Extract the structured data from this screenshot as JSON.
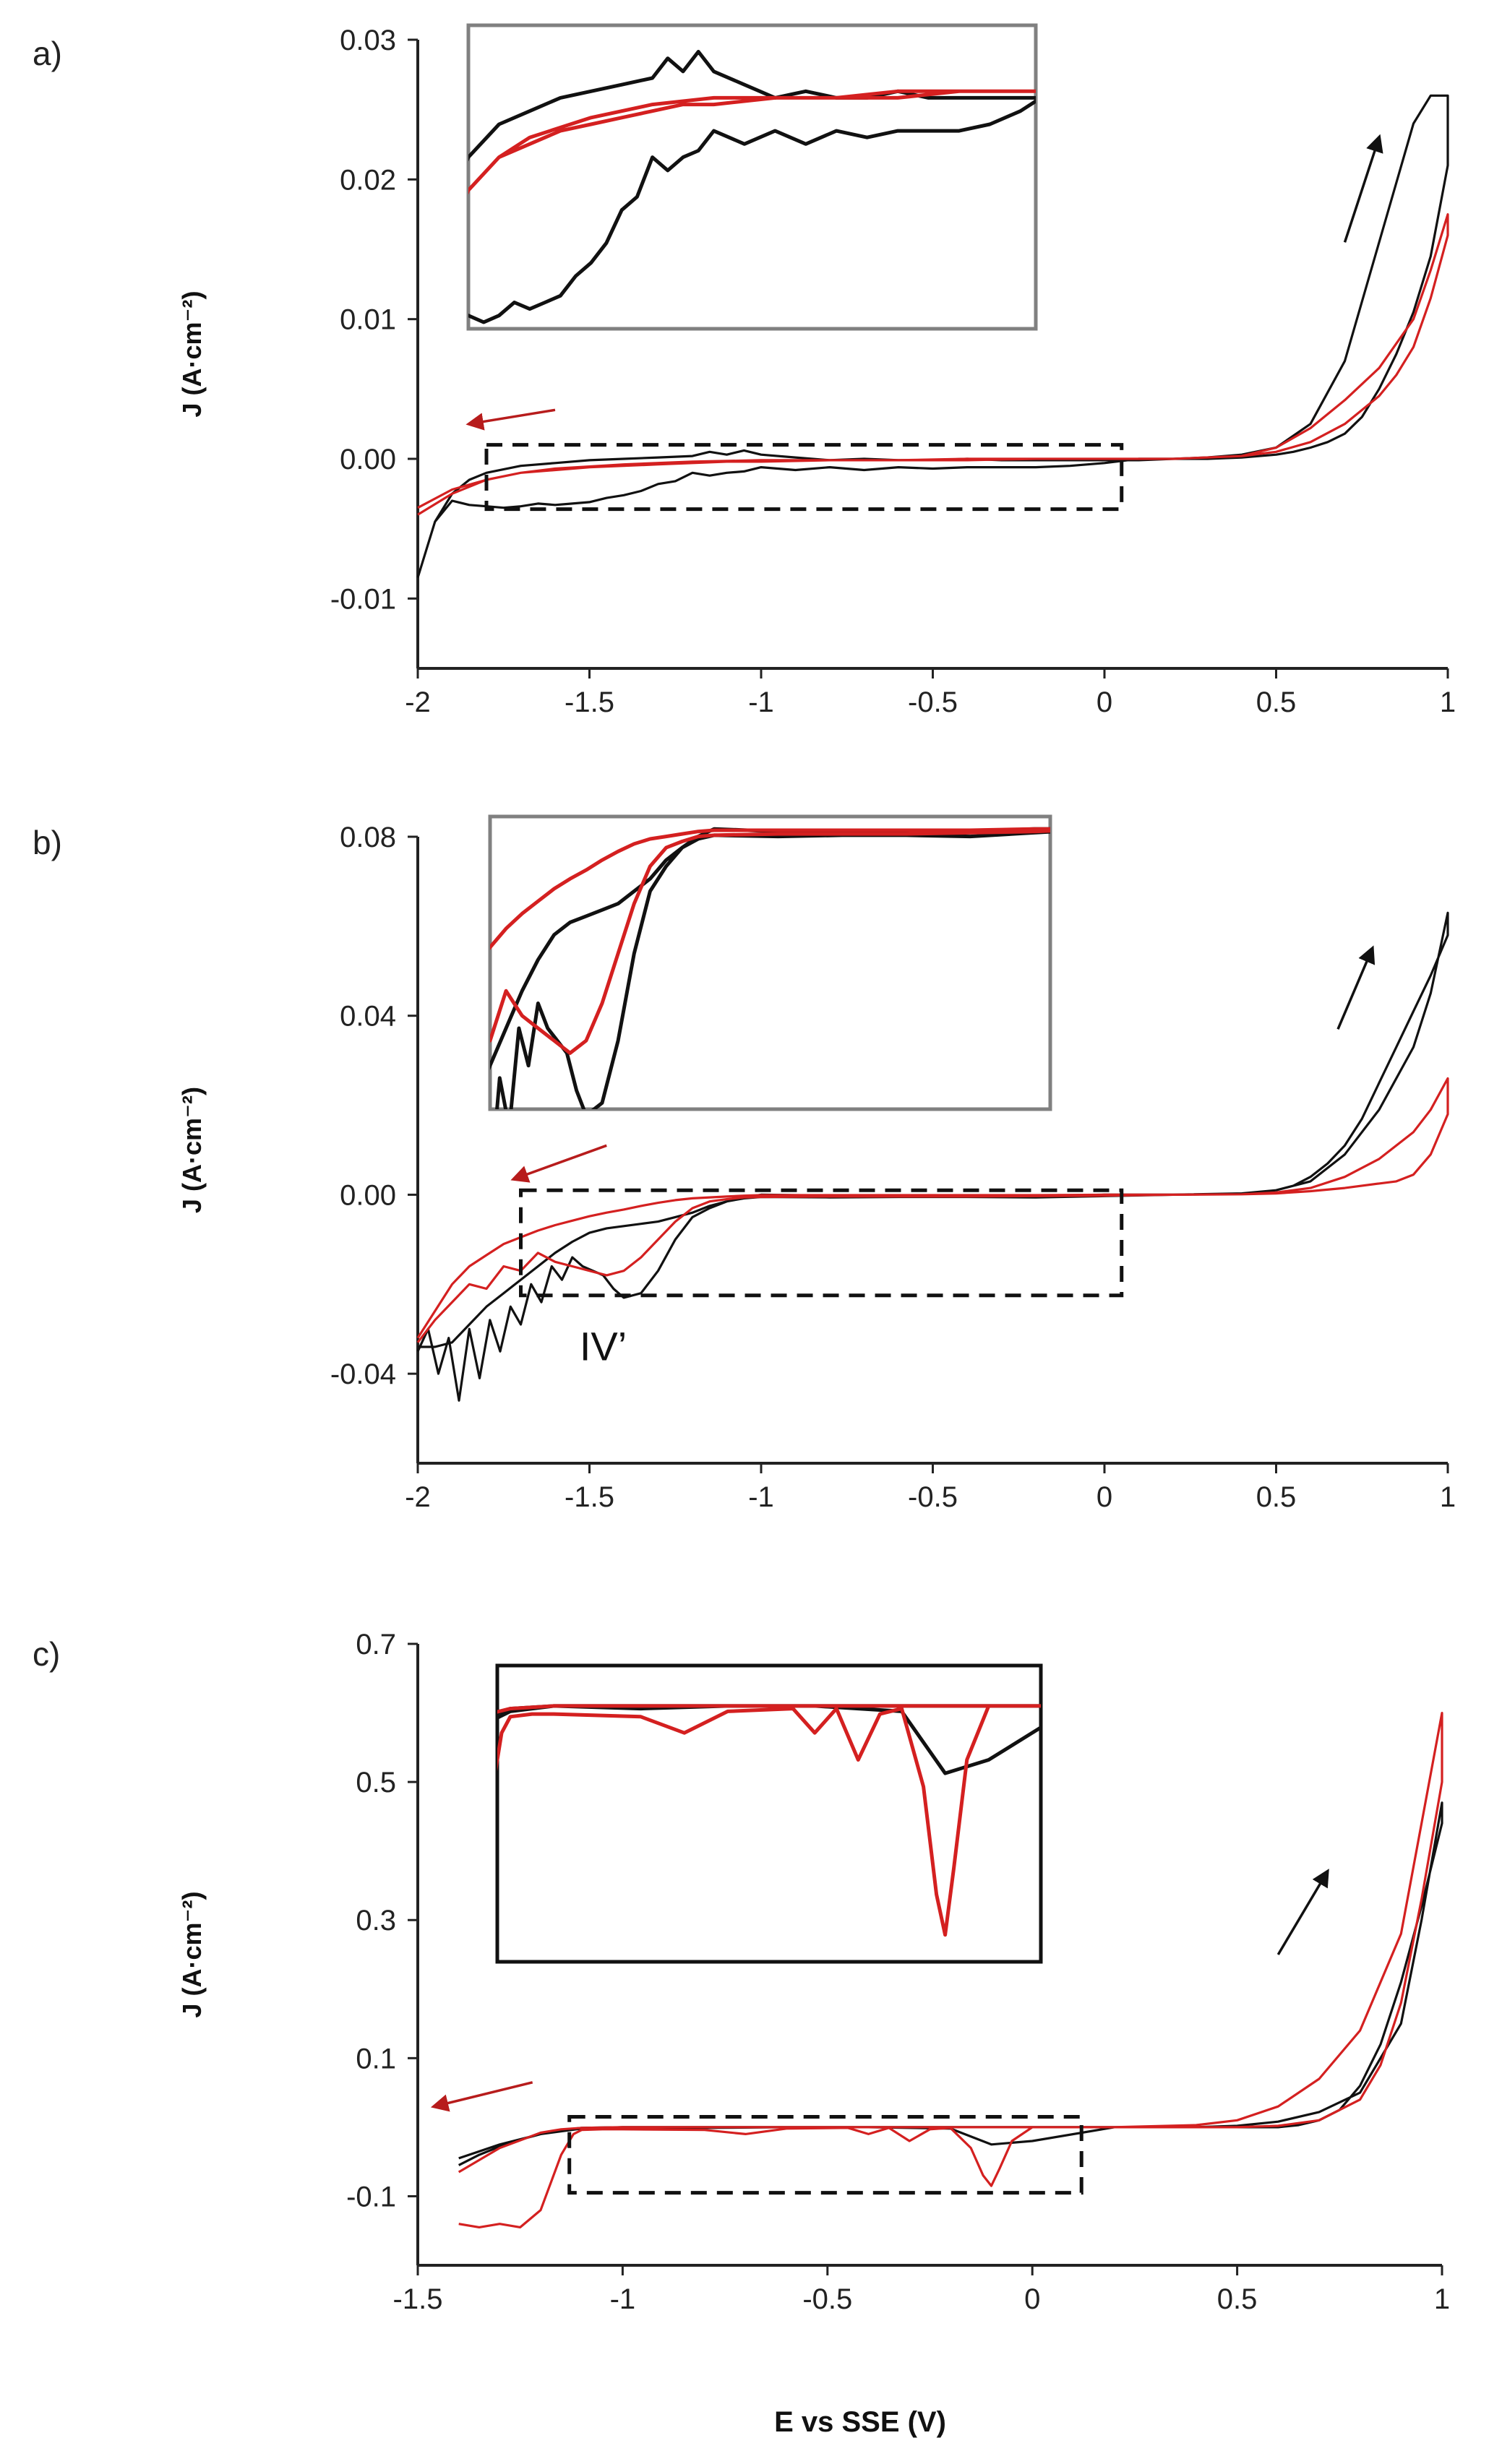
{
  "figure": {
    "xlabel": "E vs SSE (V)",
    "colors": {
      "black": "#111111",
      "red": "#d42020",
      "inset_border_gray": "#808080",
      "arrow_black": "#111111",
      "arrow_red": "#b71c1c"
    }
  },
  "chart_data": [
    {
      "panel": "a)",
      "type": "line",
      "title": "",
      "xlabel": "",
      "ylabel": "J (A·cm⁻²)",
      "xlim": [
        -2,
        1
      ],
      "ylim": [
        -0.015,
        0.03
      ],
      "xticks": [
        -2,
        -1.5,
        -1,
        -0.5,
        0,
        0.5,
        1
      ],
      "xtick_labels": [
        "-2",
        "-1.5",
        "-1",
        "-0.5",
        "0",
        "0.5",
        "1"
      ],
      "yticks": [
        -0.01,
        0.0,
        0.01,
        0.02,
        0.03
      ],
      "ytick_labels": [
        "-0.01",
        "0.00",
        "0.01",
        "0.02",
        "0.03"
      ],
      "zoom_box": {
        "x": [
          -1.8,
          0.05
        ],
        "y": [
          -0.0036,
          0.001
        ]
      },
      "inset_border": "gray",
      "arrows": [
        {
          "color": "black",
          "from": [
            0.7,
            0.0155
          ],
          "to": [
            0.8,
            0.023
          ]
        },
        {
          "color": "red",
          "from": [
            -1.6,
            0.0035
          ],
          "to": [
            -1.85,
            0.0025
          ]
        }
      ],
      "series": [
        {
          "name": "black",
          "color": "black",
          "x": [
            -2.0,
            -1.95,
            -1.9,
            -1.85,
            -1.8,
            -1.75,
            -1.7,
            -1.65,
            -1.6,
            -1.55,
            -1.5,
            -1.45,
            -1.4,
            -1.35,
            -1.3,
            -1.25,
            -1.2,
            -1.15,
            -1.1,
            -1.05,
            -1.0,
            -0.9,
            -0.8,
            -0.7,
            -0.6,
            -0.5,
            -0.4,
            -0.3,
            -0.2,
            -0.1,
            0.0,
            0.1,
            0.2,
            0.3,
            0.4,
            0.5,
            0.6,
            0.7,
            0.8,
            0.9,
            0.95,
            1.0,
            1.0,
            0.95,
            0.9,
            0.85,
            0.8,
            0.75,
            0.7,
            0.65,
            0.6,
            0.55,
            0.5,
            0.4,
            0.3,
            0.2,
            0.1,
            0.0,
            -0.1,
            -0.2,
            -0.3,
            -0.4,
            -0.5,
            -0.6,
            -0.7,
            -0.8,
            -0.9,
            -1.0,
            -1.05,
            -1.1,
            -1.15,
            -1.2,
            -1.3,
            -1.4,
            -1.5,
            -1.6,
            -1.7,
            -1.8,
            -1.85,
            -1.9,
            -1.95,
            -2.0
          ],
          "y": [
            -0.0085,
            -0.0045,
            -0.003,
            -0.0033,
            -0.0034,
            -0.0035,
            -0.0034,
            -0.0032,
            -0.0033,
            -0.0032,
            -0.0031,
            -0.0028,
            -0.0026,
            -0.0023,
            -0.0018,
            -0.0016,
            -0.001,
            -0.0012,
            -0.001,
            -0.0009,
            -0.0006,
            -0.0008,
            -0.0006,
            -0.0008,
            -0.0006,
            -0.0007,
            -0.0006,
            -0.0006,
            -0.0006,
            -0.0005,
            -0.0003,
            0.0,
            0.0,
            0.0001,
            0.0003,
            0.0008,
            0.0025,
            0.007,
            0.0155,
            0.024,
            0.026,
            0.026,
            0.021,
            0.0145,
            0.0105,
            0.0075,
            0.005,
            0.003,
            0.0018,
            0.0012,
            0.0008,
            0.0005,
            0.0003,
            0.0001,
            0.0,
            0.0,
            -0.0001,
            -0.0001,
            -0.0001,
            -0.0001,
            -0.0001,
            0.0,
            -0.0001,
            -0.0001,
            0.0,
            -0.0001,
            0.0001,
            0.0003,
            0.0006,
            0.0003,
            0.0005,
            0.0002,
            0.0001,
            0.0,
            -0.0001,
            -0.0003,
            -0.0005,
            -0.001,
            -0.0015,
            -0.0025,
            -0.0045,
            -0.0085
          ]
        },
        {
          "name": "red",
          "color": "red",
          "x": [
            -2.0,
            -1.9,
            -1.8,
            -1.7,
            -1.6,
            -1.5,
            -1.4,
            -1.3,
            -1.2,
            -1.1,
            -1.0,
            -0.8,
            -0.6,
            -0.4,
            -0.2,
            0.0,
            0.2,
            0.4,
            0.5,
            0.6,
            0.7,
            0.8,
            0.9,
            0.95,
            1.0,
            1.0,
            0.95,
            0.9,
            0.85,
            0.8,
            0.7,
            0.6,
            0.5,
            0.4,
            0.2,
            0.0,
            -0.2,
            -0.4,
            -0.6,
            -0.8,
            -1.0,
            -1.2,
            -1.4,
            -1.6,
            -1.7,
            -1.8,
            -1.9,
            -2.0
          ],
          "y": [
            -0.004,
            -0.0025,
            -0.0015,
            -0.001,
            -0.0008,
            -0.0006,
            -0.0005,
            -0.0004,
            -0.0003,
            -0.0002,
            -0.0002,
            -0.0001,
            -0.0001,
            -0.0001,
            0.0,
            0.0,
            0.0,
            0.0002,
            0.0008,
            0.0022,
            0.0042,
            0.0065,
            0.01,
            0.0135,
            0.0175,
            0.016,
            0.0115,
            0.008,
            0.006,
            0.0045,
            0.0025,
            0.0012,
            0.0005,
            0.0002,
            0.0,
            0.0,
            0.0,
            0.0,
            -0.0001,
            -0.0001,
            -0.0001,
            -0.0002,
            -0.0004,
            -0.0007,
            -0.001,
            -0.0015,
            -0.0022,
            -0.0035
          ]
        }
      ]
    },
    {
      "panel": "b)",
      "type": "line",
      "title": "",
      "xlabel": "",
      "ylabel": "J (A·cm⁻²)",
      "xlim": [
        -2,
        1
      ],
      "ylim": [
        -0.06,
        0.08
      ],
      "xticks": [
        -2,
        -1.5,
        -1,
        -0.5,
        0,
        0.5,
        1
      ],
      "xtick_labels": [
        "-2",
        "-1.5",
        "-1",
        "-0.5",
        "0",
        "0.5",
        "1"
      ],
      "yticks": [
        -0.04,
        0.0,
        0.04,
        0.08
      ],
      "ytick_labels": [
        "-0.04",
        "0.00",
        "0.04",
        "0.08"
      ],
      "zoom_box": {
        "x": [
          -1.7,
          0.05
        ],
        "y": [
          -0.0225,
          0.001
        ]
      },
      "inset_border": "gray",
      "annotation": {
        "text": "IV’",
        "x": -1.46,
        "y": -0.037
      },
      "arrows": [
        {
          "color": "black",
          "from": [
            0.68,
            0.037
          ],
          "to": [
            0.78,
            0.055
          ]
        },
        {
          "color": "red",
          "from": [
            -1.45,
            0.011
          ],
          "to": [
            -1.72,
            0.0035
          ]
        }
      ],
      "series": [
        {
          "name": "black",
          "color": "black",
          "x": [
            -2.0,
            -1.97,
            -1.94,
            -1.91,
            -1.88,
            -1.85,
            -1.82,
            -1.79,
            -1.76,
            -1.73,
            -1.7,
            -1.67,
            -1.64,
            -1.61,
            -1.58,
            -1.55,
            -1.52,
            -1.49,
            -1.46,
            -1.43,
            -1.4,
            -1.35,
            -1.3,
            -1.25,
            -1.2,
            -1.15,
            -1.1,
            -1.05,
            -1.0,
            -0.8,
            -0.6,
            -0.4,
            -0.2,
            0.0,
            0.2,
            0.4,
            0.5,
            0.6,
            0.7,
            0.8,
            0.9,
            0.95,
            1.0,
            1.0,
            0.95,
            0.9,
            0.85,
            0.8,
            0.75,
            0.7,
            0.65,
            0.6,
            0.55,
            0.5,
            0.4,
            0.2,
            0.0,
            -0.2,
            -0.4,
            -0.6,
            -0.8,
            -1.0,
            -1.05,
            -1.1,
            -1.15,
            -1.2,
            -1.25,
            -1.3,
            -1.35,
            -1.4,
            -1.45,
            -1.5,
            -1.55,
            -1.6,
            -1.65,
            -1.7,
            -1.75,
            -1.8,
            -1.85,
            -1.9,
            -1.95,
            -2.0
          ],
          "y": [
            -0.035,
            -0.03,
            -0.04,
            -0.032,
            -0.046,
            -0.03,
            -0.041,
            -0.028,
            -0.035,
            -0.025,
            -0.029,
            -0.02,
            -0.024,
            -0.016,
            -0.019,
            -0.014,
            -0.016,
            -0.017,
            -0.018,
            -0.021,
            -0.023,
            -0.022,
            -0.017,
            -0.01,
            -0.005,
            -0.003,
            -0.0015,
            -0.0008,
            -0.0005,
            -0.0006,
            -0.0005,
            -0.0005,
            -0.0006,
            -0.0003,
            0.0,
            0.0003,
            0.001,
            0.003,
            0.009,
            0.019,
            0.033,
            0.045,
            0.063,
            0.058,
            0.049,
            0.041,
            0.033,
            0.025,
            0.017,
            0.011,
            0.007,
            0.004,
            0.002,
            0.001,
            0.0002,
            0.0,
            0.0,
            -0.0002,
            -0.0002,
            -0.0002,
            -0.0002,
            0.0,
            -0.0006,
            -0.0015,
            -0.0025,
            -0.004,
            -0.005,
            -0.006,
            -0.0065,
            -0.007,
            -0.0075,
            -0.0085,
            -0.0105,
            -0.013,
            -0.016,
            -0.019,
            -0.022,
            -0.025,
            -0.029,
            -0.033,
            -0.034,
            -0.034
          ]
        },
        {
          "name": "red",
          "color": "red",
          "x": [
            -2.0,
            -1.95,
            -1.9,
            -1.85,
            -1.8,
            -1.75,
            -1.7,
            -1.65,
            -1.6,
            -1.55,
            -1.5,
            -1.45,
            -1.4,
            -1.35,
            -1.3,
            -1.25,
            -1.2,
            -1.15,
            -1.1,
            -1.05,
            -1.0,
            -0.8,
            -0.6,
            -0.4,
            -0.2,
            0.0,
            0.2,
            0.4,
            0.5,
            0.6,
            0.7,
            0.8,
            0.9,
            0.95,
            1.0,
            1.0,
            0.95,
            0.9,
            0.85,
            0.8,
            0.7,
            0.6,
            0.5,
            0.4,
            0.2,
            0.0,
            -0.2,
            -0.4,
            -0.6,
            -0.8,
            -1.0,
            -1.05,
            -1.1,
            -1.15,
            -1.2,
            -1.25,
            -1.3,
            -1.35,
            -1.4,
            -1.45,
            -1.5,
            -1.55,
            -1.6,
            -1.65,
            -1.7,
            -1.75,
            -1.8,
            -1.85,
            -1.9,
            -1.95,
            -2.0
          ],
          "y": [
            -0.033,
            -0.028,
            -0.024,
            -0.02,
            -0.021,
            -0.016,
            -0.017,
            -0.013,
            -0.015,
            -0.016,
            -0.017,
            -0.018,
            -0.017,
            -0.014,
            -0.01,
            -0.006,
            -0.003,
            -0.0015,
            -0.001,
            -0.0006,
            -0.0005,
            -0.0004,
            -0.0004,
            -0.0004,
            -0.0003,
            -0.0002,
            0.0,
            0.0001,
            0.0005,
            0.0015,
            0.004,
            0.008,
            0.014,
            0.019,
            0.026,
            0.018,
            0.009,
            0.0045,
            0.003,
            0.0025,
            0.0015,
            0.0008,
            0.0003,
            0.0001,
            0.0,
            0.0,
            -0.0001,
            -0.0001,
            -0.0001,
            -0.0001,
            -0.0001,
            -0.0002,
            -0.0004,
            -0.0006,
            -0.0008,
            -0.0012,
            -0.0018,
            -0.0025,
            -0.0033,
            -0.004,
            -0.0048,
            -0.0058,
            -0.0068,
            -0.008,
            -0.0095,
            -0.011,
            -0.0135,
            -0.016,
            -0.02,
            -0.026,
            -0.032
          ]
        }
      ]
    },
    {
      "panel": "c)",
      "type": "line",
      "title": "",
      "xlabel": "E vs SSE (V)",
      "ylabel": "J (A·cm⁻²)",
      "xlim": [
        -1.5,
        1
      ],
      "ylim": [
        -0.2,
        0.7
      ],
      "xticks": [
        -1.5,
        -1,
        -0.5,
        0,
        0.5,
        1
      ],
      "xtick_labels": [
        "-1.5",
        "-1",
        "-0.5",
        "0",
        "0.5",
        "1"
      ],
      "yticks": [
        -0.1,
        0.1,
        0.3,
        0.5,
        0.7
      ],
      "ytick_labels": [
        "-0.1",
        "0.1",
        "0.3",
        "0.5",
        "0.7"
      ],
      "zoom_box": {
        "x": [
          -1.13,
          0.12
        ],
        "y": [
          -0.095,
          0.015
        ]
      },
      "inset_border": "black",
      "arrows": [
        {
          "color": "black",
          "from": [
            0.6,
            0.25
          ],
          "to": [
            0.72,
            0.37
          ]
        },
        {
          "color": "red",
          "from": [
            -1.22,
            0.065
          ],
          "to": [
            -1.46,
            0.03
          ]
        }
      ],
      "series": [
        {
          "name": "black",
          "color": "black",
          "x": [
            -1.4,
            -1.35,
            -1.3,
            -1.25,
            -1.2,
            -1.15,
            -1.1,
            -1.0,
            -0.8,
            -0.6,
            -0.4,
            -0.2,
            -0.1,
            0.0,
            0.2,
            0.4,
            0.5,
            0.6,
            0.7,
            0.8,
            0.9,
            0.95,
            1.0,
            1.0,
            0.95,
            0.9,
            0.85,
            0.8,
            0.75,
            0.7,
            0.65,
            0.6,
            0.5,
            0.3,
            0.1,
            0.0,
            -0.3,
            -0.5,
            -0.7,
            -0.9,
            -1.0,
            -1.1,
            -1.2,
            -1.3,
            -1.4
          ],
          "y": [
            -0.055,
            -0.04,
            -0.028,
            -0.018,
            -0.01,
            -0.004,
            -0.001,
            0.0,
            -0.001,
            0.0,
            0.0,
            -0.002,
            -0.025,
            -0.02,
            0.0,
            0.0,
            0.002,
            0.008,
            0.022,
            0.05,
            0.15,
            0.3,
            0.47,
            0.44,
            0.32,
            0.21,
            0.12,
            0.06,
            0.025,
            0.01,
            0.003,
            0.0,
            0.0,
            0.0,
            0.0,
            0.0,
            0.0,
            0.0,
            0.0,
            0.0,
            0.0,
            -0.002,
            -0.01,
            -0.025,
            -0.045
          ]
        },
        {
          "name": "red",
          "color": "red",
          "x": [
            -1.4,
            -1.35,
            -1.3,
            -1.25,
            -1.2,
            -1.15,
            -1.12,
            -1.1,
            -1.05,
            -1.0,
            -0.8,
            -0.7,
            -0.6,
            -0.45,
            -0.4,
            -0.35,
            -0.3,
            -0.25,
            -0.2,
            -0.15,
            -0.12,
            -0.1,
            -0.08,
            -0.05,
            0.0,
            0.2,
            0.4,
            0.5,
            0.6,
            0.7,
            0.8,
            0.9,
            0.95,
            1.0,
            1.0,
            0.95,
            0.9,
            0.85,
            0.8,
            0.7,
            0.6,
            0.5,
            0.3,
            0.1,
            0.0,
            -0.3,
            -0.5,
            -0.8,
            -1.0,
            -1.1,
            -1.15,
            -1.2,
            -1.3,
            -1.4
          ],
          "y": [
            -0.14,
            -0.145,
            -0.14,
            -0.145,
            -0.12,
            -0.04,
            -0.01,
            -0.004,
            -0.003,
            -0.003,
            -0.004,
            -0.01,
            -0.002,
            -0.001,
            -0.01,
            -0.001,
            -0.02,
            -0.003,
            -0.001,
            -0.03,
            -0.07,
            -0.085,
            -0.06,
            -0.02,
            0.0,
            0.0,
            0.003,
            0.01,
            0.03,
            0.07,
            0.14,
            0.28,
            0.44,
            0.6,
            0.5,
            0.33,
            0.18,
            0.09,
            0.04,
            0.01,
            0.002,
            0.0,
            0.0,
            0.0,
            0.0,
            0.0,
            0.0,
            0.0,
            0.0,
            -0.001,
            -0.003,
            -0.008,
            -0.03,
            -0.065
          ]
        }
      ]
    }
  ]
}
